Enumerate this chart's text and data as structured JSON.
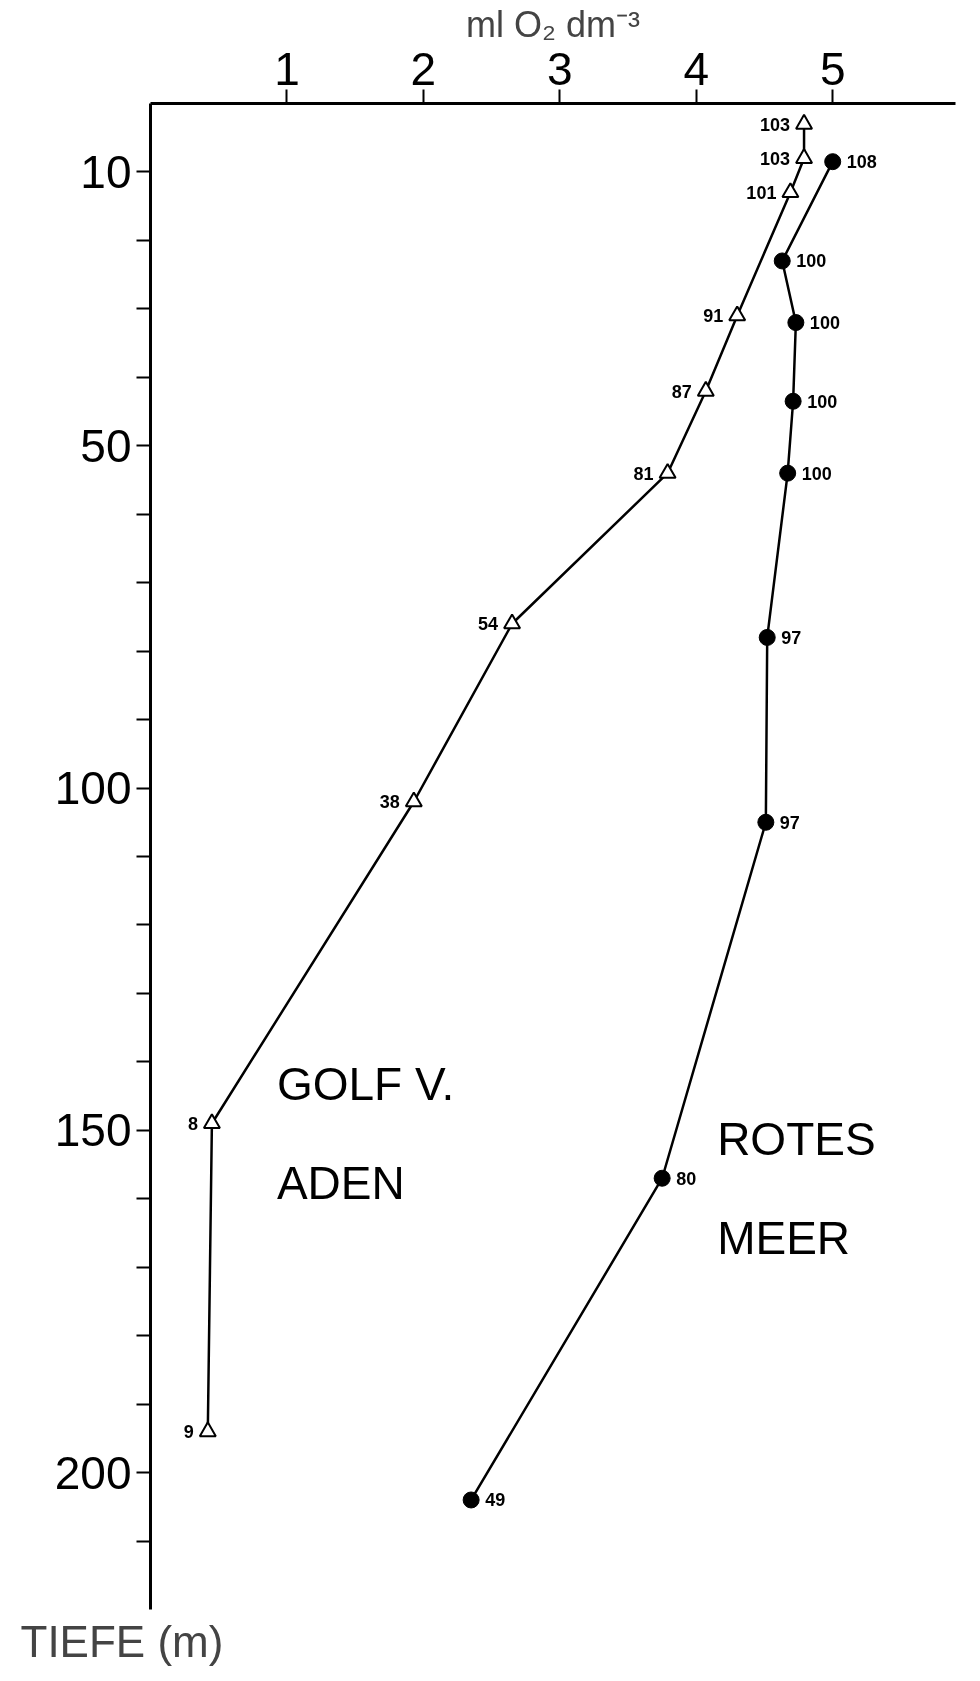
{
  "chart_data": {
    "type": "line",
    "xlabel": "ml O₂ dm⁻³",
    "ylabel": "TIEFE (m)",
    "xlim": [
      0,
      5.9
    ],
    "ylim": [
      220,
      0
    ],
    "xticks": [
      1,
      2,
      3,
      4,
      5
    ],
    "yticks": [
      10,
      {
        "value": 20,
        "label": null
      },
      {
        "value": 30,
        "label": null
      },
      {
        "value": 40,
        "label": null
      },
      50,
      {
        "value": 60,
        "label": null
      },
      {
        "value": 70,
        "label": null
      },
      {
        "value": 80,
        "label": null
      },
      {
        "value": 90,
        "label": null
      },
      100,
      {
        "value": 110,
        "label": null
      },
      {
        "value": 120,
        "label": null
      },
      {
        "value": 130,
        "label": null
      },
      {
        "value": 140,
        "label": null
      },
      150,
      {
        "value": 160,
        "label": null
      },
      {
        "value": 170,
        "label": null
      },
      {
        "value": 180,
        "label": null
      },
      {
        "value": 190,
        "label": null
      },
      200,
      {
        "value": 210,
        "label": null
      }
    ],
    "grid": false,
    "legend": "bottom",
    "series": [
      {
        "name": "GOLF V. ADEN",
        "color": "#000000",
        "marker": "triangle",
        "x": [
          4.79,
          4.79,
          4.69,
          4.3,
          4.07,
          3.79,
          2.65,
          1.93,
          0.45,
          0.42
        ],
        "values": [
          3,
          8,
          13,
          31,
          42,
          54,
          76,
          102,
          149,
          194
        ]
      },
      {
        "name": "ROTES MEER",
        "color": "#000000",
        "marker": "circle",
        "x": [
          5.0,
          4.63,
          4.73,
          4.71,
          4.67,
          4.52,
          4.51,
          3.75,
          2.35
        ],
        "values": [
          8.5,
          23,
          32,
          43.5,
          54,
          78,
          105,
          157,
          204
        ]
      }
    ],
    "annotations": [
      {
        "text": "103",
        "x": 4.79,
        "y": 3
      },
      {
        "text": "103",
        "x": 4.79,
        "y": 8
      },
      {
        "text": "101",
        "x": 4.69,
        "y": 13
      },
      {
        "text": "91",
        "x": 4.3,
        "y": 31
      },
      {
        "text": "87",
        "x": 4.07,
        "y": 42
      },
      {
        "text": "81",
        "x": 3.79,
        "y": 54
      },
      {
        "text": "54",
        "x": 2.65,
        "y": 76
      },
      {
        "text": "38",
        "x": 1.93,
        "y": 102
      },
      {
        "text": "8",
        "x": 0.45,
        "y": 149
      },
      {
        "text": "9",
        "x": 0.42,
        "y": 194
      },
      {
        "text": "108",
        "x": 5.0,
        "y": 8.5
      },
      {
        "text": "100",
        "x": 4.63,
        "y": 23
      },
      {
        "text": "100",
        "x": 4.73,
        "y": 32
      },
      {
        "text": "100",
        "x": 4.71,
        "y": 43.5
      },
      {
        "text": "100",
        "x": 4.67,
        "y": 54
      },
      {
        "text": "97",
        "x": 4.52,
        "y": 78
      },
      {
        "text": "97",
        "x": 4.51,
        "y": 105
      },
      {
        "text": "80",
        "x": 3.75,
        "y": 157
      },
      {
        "text": "49",
        "x": 2.35,
        "y": 204
      }
    ]
  }
}
